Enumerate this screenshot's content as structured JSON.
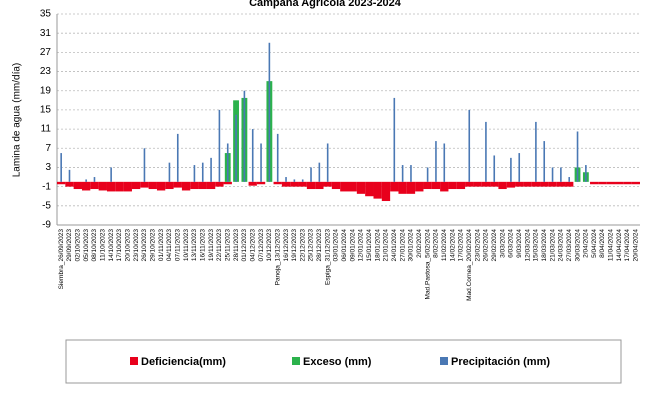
{
  "chart_data": {
    "type": "bar",
    "title": "Campaña Agrícola 2023-2024",
    "y_label": "Lamina de agua (mm/día)",
    "ylim": [
      -9,
      35
    ],
    "yticks": [
      -9,
      -5,
      -1,
      3,
      7,
      11,
      15,
      19,
      23,
      27,
      31,
      35
    ],
    "grid": true,
    "legend": "bottom",
    "categories": [
      "Siembra_26/09/2023",
      "29/09/2023",
      "02/10/2023",
      "05/10/2023",
      "08/10/2023",
      "11/10/2023",
      "14/10/2023",
      "17/10/2023",
      "20/10/2023",
      "23/10/2023",
      "26/10/2023",
      "29/10/2023",
      "01/11/2023",
      "04/11/2023",
      "07/11/2023",
      "10/11/2023",
      "13/11/2023",
      "16/11/2023",
      "19/11/2023",
      "22/11/2023",
      "25/11/2023",
      "28/11/2023",
      "01/12/2023",
      "04/12/2023",
      "07/12/2023",
      "10/12/2023",
      "Panoja_13/12/2023",
      "16/12/2023",
      "19/12/2023",
      "22/12/2023",
      "25/12/2023",
      "28/12/2023",
      "Espiga_31/12/2023",
      "03/01/2024",
      "06/01/2024",
      "09/01/2024",
      "12/01/2024",
      "15/01/2024",
      "18/01/2024",
      "21/01/2024",
      "24/01/2024",
      "27/01/2024",
      "30/01/2024",
      "2/02/2024",
      "Mad.Pastosa_5/02/2024",
      "8/02/2024",
      "11/02/2024",
      "14/02/2024",
      "17/02/2024",
      "Mad.Cornea_20/02/2024",
      "23/02/2024",
      "26/02/2024",
      "29/02/2024",
      "3/03/2024",
      "6/03/2024",
      "9/03/2024",
      "12/03/2024",
      "15/03/2024",
      "18/03/2024",
      "21/03/2024",
      "24/03/2024",
      "27/03/2024",
      "30/03/2024",
      "2/04/2024",
      "5/04/2024",
      "8/04/2024",
      "11/04/2024",
      "14/04/2024",
      "17/04/2024",
      "20/04/2024"
    ],
    "series": [
      {
        "name": "Deficiencia(mm)",
        "color": "#e8001c",
        "values": [
          -0.5,
          -1,
          -1.5,
          -1.8,
          -1.5,
          -1.8,
          -2,
          -2,
          -2,
          -1.5,
          -1.2,
          -1.5,
          -1.8,
          -1.5,
          -1.2,
          -1.8,
          -1.5,
          -1.5,
          -1.5,
          -1,
          -0.5,
          0,
          0,
          -0.8,
          -0.5,
          0,
          -0.5,
          -1,
          -1,
          -1,
          -1.5,
          -1.5,
          -1,
          -1.5,
          -2,
          -2,
          -2.5,
          -3,
          -3.5,
          -4,
          -2,
          -2.5,
          -2.5,
          -2,
          -1.5,
          -1.5,
          -2,
          -1.5,
          -1.5,
          -1,
          -1,
          -1,
          -1,
          -1.5,
          -1.2,
          -1,
          -1,
          -1,
          -1,
          -1,
          -1,
          -1,
          0,
          0,
          -0.5,
          -0.5,
          -0.5,
          -0.5,
          -0.5,
          -0.5
        ]
      },
      {
        "name": "Exceso (mm)",
        "color": "#2bb24c",
        "values": [
          0,
          0,
          0,
          0,
          0,
          0,
          0,
          0,
          0,
          0,
          0,
          0,
          0,
          0,
          0,
          0,
          0,
          0,
          0,
          0,
          6,
          17,
          17.5,
          0,
          0,
          21,
          0,
          0,
          0,
          0,
          0,
          0,
          0,
          0,
          0,
          0,
          0,
          0,
          0,
          0,
          0,
          0,
          0,
          0,
          0,
          0,
          0,
          0,
          0,
          0,
          0,
          0,
          0,
          0,
          0,
          0,
          0,
          0,
          0,
          0,
          0,
          0,
          3,
          2,
          0,
          0,
          0,
          0,
          0,
          0
        ]
      },
      {
        "name": "Precipitación (mm)",
        "color": "#4a78b4",
        "values": [
          6,
          2.5,
          0,
          0.5,
          1,
          0,
          3,
          0,
          0,
          0,
          7,
          0,
          0,
          4,
          10,
          0,
          3.5,
          4,
          5,
          15,
          8,
          14,
          19,
          11,
          8,
          29,
          10,
          1,
          0.5,
          0.5,
          3,
          4,
          8,
          0,
          0,
          0,
          0,
          0,
          0,
          0,
          17.5,
          3.5,
          3.5,
          0,
          3,
          8.5,
          8,
          0,
          0,
          15,
          0,
          12.5,
          5.5,
          0,
          5,
          6,
          0,
          12.5,
          8.5,
          3,
          3,
          1,
          10.5,
          3.5,
          0,
          0,
          0,
          0,
          0,
          0
        ]
      }
    ]
  }
}
